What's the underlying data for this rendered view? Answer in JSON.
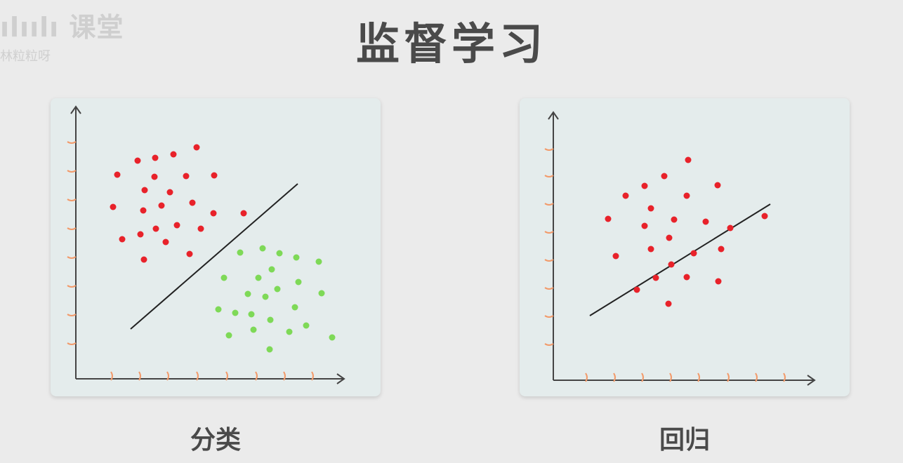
{
  "watermark": {
    "logo_text": "ılıılı 课堂",
    "subtitle": "林粒粒呀"
  },
  "page": {
    "title": "监督学习"
  },
  "diagrams": {
    "classification": {
      "label": "分类",
      "colors": {
        "class_a": "#e8222a",
        "class_b": "#7ed957",
        "axis": "#444444",
        "ticks": "#f29a6a",
        "line": "#222222"
      }
    },
    "regression": {
      "label": "回归",
      "colors": {
        "points": "#e8222a",
        "axis": "#444444",
        "ticks": "#f29a6a",
        "line": "#222222"
      }
    }
  }
}
